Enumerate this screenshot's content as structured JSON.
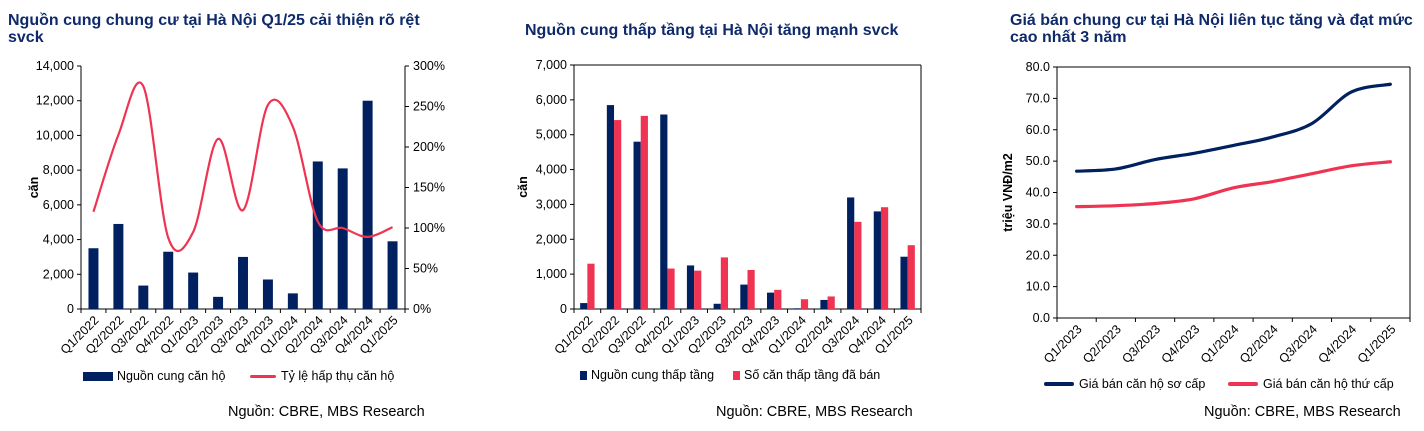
{
  "colors": {
    "navy": "#002060",
    "red": "#ee3452",
    "title": "#0f2a6b"
  },
  "source": "Nguồn: CBRE, MBS Research",
  "chart_data": [
    {
      "type": "bar+line",
      "title": "Nguồn cung chung cư tại Hà Nội Q1/25 cải thiện rõ rệt svck",
      "ylabel": "căn",
      "ylim": [
        0,
        14000
      ],
      "y_ticks": [
        "0",
        "2,000",
        "4,000",
        "6,000",
        "8,000",
        "10,000",
        "12,000",
        "14,000"
      ],
      "y2lim": [
        0,
        300
      ],
      "y2_ticks": [
        "0%",
        "50%",
        "100%",
        "150%",
        "200%",
        "250%",
        "300%"
      ],
      "categories": [
        "Q1/2022",
        "Q2/2022",
        "Q3/2022",
        "Q4/2022",
        "Q1/2023",
        "Q2/2023",
        "Q3/2023",
        "Q4/2023",
        "Q1/2024",
        "Q2/2024",
        "Q3/2024",
        "Q4/2024",
        "Q1/2025"
      ],
      "series": [
        {
          "name": "Nguồn cung căn hộ",
          "kind": "bar",
          "axis": "left",
          "color": "#002060",
          "values": [
            3500,
            4900,
            1350,
            3300,
            2100,
            700,
            3000,
            1700,
            900,
            8500,
            8100,
            12000,
            3900
          ]
        },
        {
          "name": "Tỷ lệ hấp thụ căn hộ",
          "kind": "line",
          "axis": "right",
          "color": "#ee3452",
          "values": [
            120,
            215,
            275,
            88,
            95,
            210,
            122,
            252,
            225,
            108,
            100,
            89,
            101
          ]
        }
      ],
      "legend": "bottom",
      "grid": false
    },
    {
      "type": "bar",
      "title": "Nguồn cung thấp tầng tại Hà Nội tăng mạnh svck",
      "ylabel": "căn",
      "ylim": [
        0,
        7000
      ],
      "y_ticks": [
        "0",
        "1,000",
        "2,000",
        "3,000",
        "4,000",
        "5,000",
        "6,000",
        "7,000"
      ],
      "categories": [
        "Q1/2022",
        "Q2/2022",
        "Q3/2022",
        "Q4/2022",
        "Q1/2023",
        "Q2/2023",
        "Q3/2023",
        "Q4/2023",
        "Q1/2024",
        "Q2/2024",
        "Q3/2024",
        "Q4/2024",
        "Q1/2025"
      ],
      "series": [
        {
          "name": "Nguồn cung thấp tầng",
          "color": "#002060",
          "values": [
            170,
            5850,
            4800,
            5580,
            1250,
            150,
            700,
            470,
            20,
            260,
            3200,
            2800,
            1500
          ]
        },
        {
          "name": "Số căn thấp tầng đã bán",
          "color": "#ee3452",
          "values": [
            1300,
            5420,
            5540,
            1160,
            1100,
            1480,
            1120,
            550,
            280,
            360,
            2500,
            2920,
            1830
          ]
        }
      ],
      "legend": "bottom",
      "grid": false
    },
    {
      "type": "line",
      "title": "Giá bán chung cư tại Hà Nội liên tục tăng và đạt mức cao nhất 3 năm",
      "ylabel": "triệu VNĐ/m2",
      "ylim": [
        0,
        80
      ],
      "y_ticks": [
        "0.0",
        "10.0",
        "20.0",
        "30.0",
        "40.0",
        "50.0",
        "60.0",
        "70.0",
        "80.0"
      ],
      "categories": [
        "Q1/2023",
        "Q2/2023",
        "Q3/2023",
        "Q4/2023",
        "Q1/2024",
        "Q2/2024",
        "Q3/2024",
        "Q4/2024",
        "Q1/2025"
      ],
      "series": [
        {
          "name": "Giá bán căn hộ sơ cấp",
          "color": "#002060",
          "values": [
            46.8,
            47.5,
            50.5,
            52.5,
            55.0,
            57.7,
            62.0,
            72.0,
            74.5
          ]
        },
        {
          "name": "Giá bán căn hộ thứ cấp",
          "color": "#ee3452",
          "values": [
            35.5,
            35.8,
            36.5,
            38.0,
            41.5,
            43.5,
            46.0,
            48.5,
            49.8
          ]
        }
      ],
      "legend": "bottom",
      "grid": false
    }
  ]
}
